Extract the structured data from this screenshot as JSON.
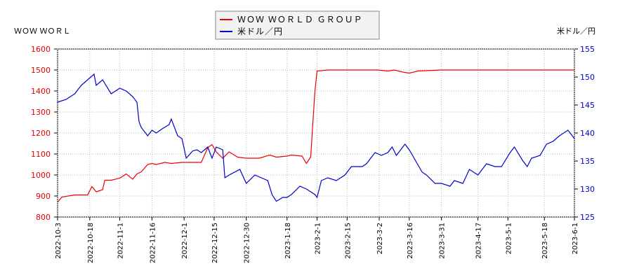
{
  "chart_data": {
    "type": "line",
    "title": "ＷＯＷ ＷＯＲＬ",
    "y2_label": "米ドル／円",
    "xlim": [
      "2022-10-3",
      "2023-6-1"
    ],
    "xticks": [
      "2022-10-3",
      "2022-10-18",
      "2022-11-1",
      "2022-11-16",
      "2022-12-1",
      "2022-12-15",
      "2022-12-30",
      "2023-1-18",
      "2023-2-1",
      "2023-2-15",
      "2023-3-2",
      "2023-3-16",
      "2023-3-31",
      "2023-4-17",
      "2023-5-1",
      "2023-5-18",
      "2023-6-1"
    ],
    "ylim": [
      800,
      1600
    ],
    "yticks": [
      800,
      900,
      1000,
      1100,
      1200,
      1300,
      1400,
      1500,
      1600
    ],
    "y2lim": [
      125,
      155
    ],
    "y2ticks": [
      125,
      130,
      135,
      140,
      145,
      150,
      155
    ],
    "grid": true,
    "series": [
      {
        "name": "ＷＯＷ ＷＯＲＬＤ ＧＲＯＵＰ",
        "color": "#ee0000",
        "x": [
          "2022-10-3",
          "2022-10-5",
          "2022-10-11",
          "2022-10-17",
          "2022-10-19",
          "2022-10-21",
          "2022-10-24",
          "2022-10-25",
          "2022-10-28",
          "2022-11-1",
          "2022-11-4",
          "2022-11-7",
          "2022-11-9",
          "2022-11-11",
          "2022-11-14",
          "2022-11-16",
          "2022-11-18",
          "2022-11-22",
          "2022-11-25",
          "2022-11-30",
          "2022-12-5",
          "2022-12-9",
          "2022-12-12",
          "2022-12-14",
          "2022-12-16",
          "2022-12-19",
          "2022-12-22",
          "2022-12-26",
          "2022-12-30",
          "2023-1-5",
          "2023-1-10",
          "2023-1-13",
          "2023-1-18",
          "2023-1-20",
          "2023-1-25",
          "2023-1-27",
          "2023-1-29",
          "2023-1-31",
          "2023-2-1",
          "2023-2-6",
          "2023-2-20",
          "2023-3-1",
          "2023-3-6",
          "2023-3-9",
          "2023-3-13",
          "2023-3-16",
          "2023-3-20",
          "2023-3-31",
          "2023-4-20",
          "2023-5-1",
          "2023-5-15",
          "2023-5-25",
          "2023-6-1"
        ],
        "values": [
          870,
          895,
          905,
          905,
          945,
          920,
          930,
          975,
          975,
          985,
          1005,
          980,
          1005,
          1015,
          1050,
          1055,
          1050,
          1060,
          1055,
          1060,
          1060,
          1060,
          1130,
          1145,
          1110,
          1080,
          1110,
          1085,
          1080,
          1080,
          1095,
          1085,
          1090,
          1095,
          1090,
          1055,
          1085,
          1400,
          1495,
          1500,
          1500,
          1500,
          1495,
          1500,
          1490,
          1485,
          1495,
          1500,
          1500,
          1500,
          1500,
          1500,
          1500
        ]
      },
      {
        "name": "米ドル／円",
        "color": "#0000cc",
        "axis": "y2",
        "x": [
          "2022-10-3",
          "2022-10-7",
          "2022-10-11",
          "2022-10-14",
          "2022-10-17",
          "2022-10-20",
          "2022-10-21",
          "2022-10-24",
          "2022-10-28",
          "2022-11-1",
          "2022-11-4",
          "2022-11-7",
          "2022-11-9",
          "2022-11-10",
          "2022-11-11",
          "2022-11-14",
          "2022-11-16",
          "2022-11-18",
          "2022-11-21",
          "2022-11-24",
          "2022-11-25",
          "2022-11-28",
          "2022-11-30",
          "2022-12-2",
          "2022-12-5",
          "2022-12-7",
          "2022-12-9",
          "2022-12-12",
          "2022-12-14",
          "2022-12-16",
          "2022-12-19",
          "2022-12-20",
          "2022-12-22",
          "2022-12-27",
          "2022-12-30",
          "2023-1-3",
          "2023-1-6",
          "2023-1-9",
          "2023-1-11",
          "2023-1-13",
          "2023-1-16",
          "2023-1-18",
          "2023-1-20",
          "2023-1-24",
          "2023-1-27",
          "2023-1-31",
          "2023-2-1",
          "2023-2-3",
          "2023-2-6",
          "2023-2-10",
          "2023-2-14",
          "2023-2-17",
          "2023-2-22",
          "2023-2-24",
          "2023-2-28",
          "2023-3-3",
          "2023-3-6",
          "2023-3-8",
          "2023-3-10",
          "2023-3-14",
          "2023-3-16",
          "2023-3-22",
          "2023-3-24",
          "2023-3-28",
          "2023-3-31",
          "2023-4-4",
          "2023-4-6",
          "2023-4-10",
          "2023-4-13",
          "2023-4-17",
          "2023-4-21",
          "2023-4-25",
          "2023-4-28",
          "2023-5-2",
          "2023-5-4",
          "2023-5-8",
          "2023-5-10",
          "2023-5-12",
          "2023-5-16",
          "2023-5-19",
          "2023-5-22",
          "2023-5-25",
          "2023-5-29",
          "2023-6-1"
        ],
        "values": [
          145.5,
          146,
          147,
          148.5,
          149.5,
          150.5,
          148.5,
          149.5,
          147,
          148,
          147.5,
          146.5,
          145.5,
          142,
          141,
          139.5,
          140.5,
          140,
          140.8,
          141.5,
          142.5,
          139.5,
          139,
          135.5,
          136.8,
          137,
          136.5,
          137.5,
          135.5,
          137.5,
          137,
          132,
          132.5,
          133.5,
          131,
          132.5,
          132,
          131.5,
          129,
          127.8,
          128.5,
          128.5,
          129,
          130.5,
          130,
          129,
          128.5,
          131.5,
          132,
          131.5,
          132.5,
          134,
          134,
          134.5,
          136.5,
          136,
          136.5,
          137.5,
          136,
          138,
          137,
          133,
          132.5,
          131,
          131,
          130.5,
          131.5,
          131,
          133.5,
          132.5,
          134.5,
          134,
          134,
          136.5,
          137.5,
          135,
          134,
          135.5,
          136,
          138,
          138.5,
          139.5,
          140.5,
          139
        ]
      }
    ]
  }
}
